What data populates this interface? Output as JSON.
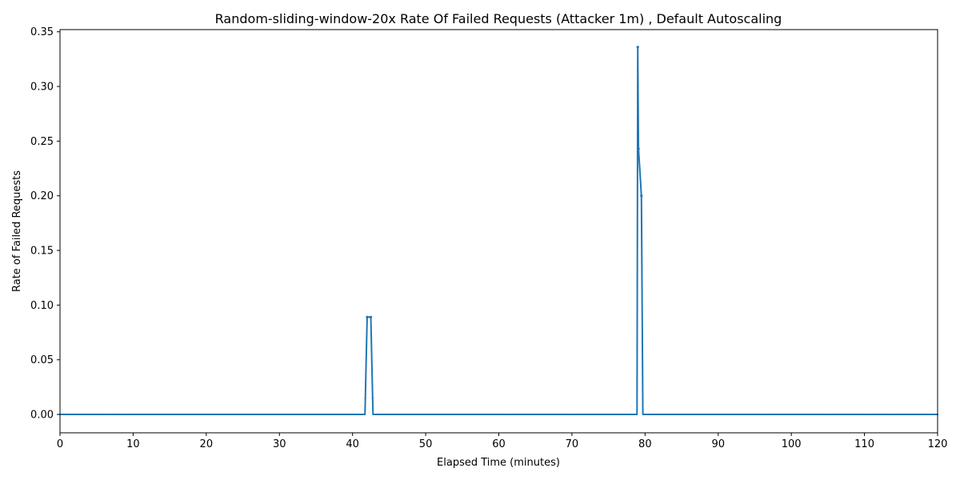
{
  "chart_data": {
    "type": "line",
    "title": "Random-sliding-window-20x Rate Of Failed Requests (Attacker 1m) , Default Autoscaling",
    "xlabel": "Elapsed Time (minutes)",
    "ylabel": "Rate of Failed Requests",
    "xlim": [
      0,
      120
    ],
    "ylim": [
      -0.0168,
      0.352
    ],
    "xticks": [
      0,
      10,
      20,
      30,
      40,
      50,
      60,
      70,
      80,
      90,
      100,
      110,
      120
    ],
    "yticks": [
      0.0,
      0.05,
      0.1,
      0.15,
      0.2,
      0.25,
      0.3,
      0.35
    ],
    "xtick_labels": [
      "0",
      "10",
      "20",
      "30",
      "40",
      "50",
      "60",
      "70",
      "80",
      "90",
      "100",
      "110",
      "120"
    ],
    "ytick_labels": [
      "0.00",
      "0.05",
      "0.10",
      "0.15",
      "0.20",
      "0.25",
      "0.30",
      "0.35"
    ],
    "grid": false,
    "color": "#1f77b4",
    "series": [
      {
        "x": [
          0,
          41.7,
          42.0,
          42.5,
          42.8,
          78.9,
          79.0,
          79.1,
          79.5,
          79.7,
          120
        ],
        "values": [
          0,
          0,
          0.089,
          0.089,
          0,
          0,
          0.336,
          0.243,
          0.2,
          0,
          0
        ]
      }
    ]
  }
}
